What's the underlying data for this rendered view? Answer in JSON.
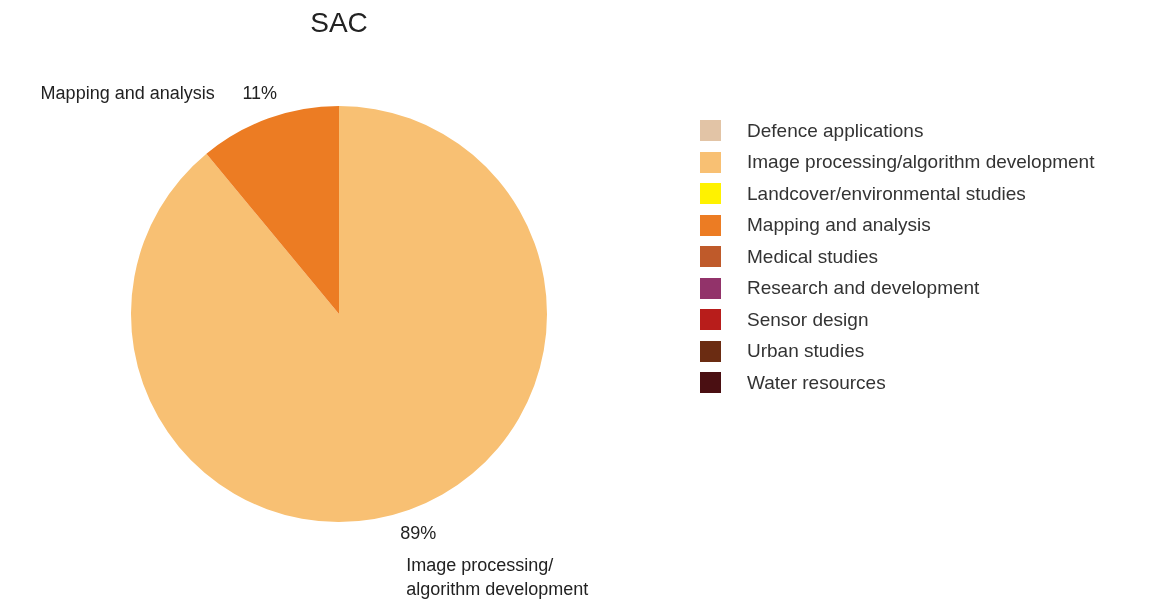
{
  "chart_data": {
    "type": "pie",
    "title": "SAC",
    "categories": [
      "Defence applications",
      "Image processing/algorithm development",
      "Landcover/environmental studies",
      "Mapping and analysis",
      "Medical studies",
      "Research and development",
      "Sensor design",
      "Urban studies",
      "Water resources"
    ],
    "values": [
      0,
      89,
      0,
      11,
      0,
      0,
      0,
      0,
      0
    ],
    "value_labels": [
      null,
      "89%",
      null,
      "11%",
      null,
      null,
      null,
      null,
      null
    ],
    "colors": [
      "#e2c4a6",
      "#f8c073",
      "#fff200",
      "#ec7c23",
      "#bf5a2a",
      "#92336a",
      "#b81d1b",
      "#6b2c12",
      "#4a0f12"
    ],
    "legend": "right"
  }
}
